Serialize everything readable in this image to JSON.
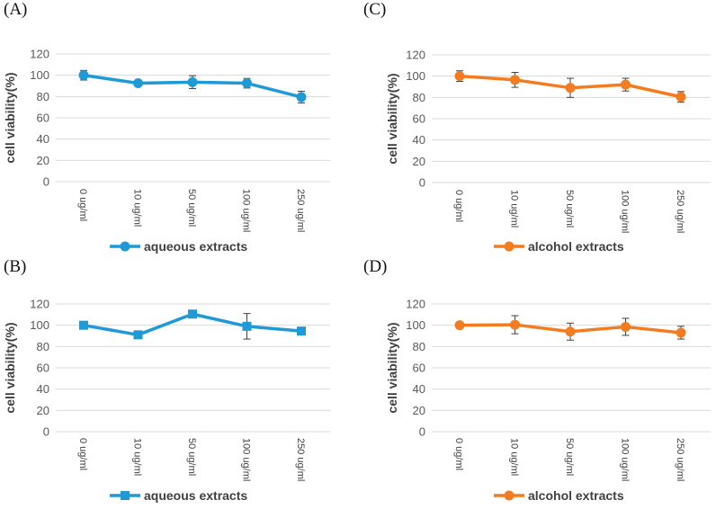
{
  "chart_data": [
    {
      "panel": "(A)",
      "type": "line",
      "marker": "circle",
      "color": "#1f9ad6",
      "categories": [
        "0 ug/ml",
        "10 ug/ml",
        "50 ug/ml",
        "100 ug/ml",
        "250 ug/ml"
      ],
      "series": [
        {
          "name": "aqueous extracts",
          "values": [
            100,
            92.5,
            93.5,
            92.5,
            79.5
          ],
          "errors": [
            4.5,
            2,
            6,
            4.5,
            5.5
          ]
        }
      ],
      "ylabel": "cell viability(%)",
      "ylim": [
        0,
        120
      ],
      "yticks": [
        "0",
        "20",
        "40",
        "60",
        "80",
        "100",
        "120"
      ],
      "grid": true,
      "legend": "bottom"
    },
    {
      "panel": "(C)",
      "type": "line",
      "marker": "circle",
      "color": "#f47c20",
      "categories": [
        "0 ug/ml",
        "10 ug/ml",
        "50 ug/ml",
        "100 ug/ml",
        "250 ug/ml"
      ],
      "series": [
        {
          "name": "alcohol extracts",
          "values": [
            100,
            96.5,
            89,
            92,
            80.5
          ],
          "errors": [
            5,
            7,
            9,
            6,
            5
          ]
        }
      ],
      "ylabel": "cell viability(%)",
      "ylim": [
        0,
        120
      ],
      "yticks": [
        "0",
        "20",
        "40",
        "60",
        "80",
        "100",
        "120"
      ],
      "grid": true,
      "legend": "bottom"
    },
    {
      "panel": "(B)",
      "type": "line",
      "marker": "square",
      "color": "#1f9ad6",
      "categories": [
        "0 ug/ml",
        "10 ug/ml",
        "50 ug/ml",
        "100 ug/ml",
        "250 ug/ml"
      ],
      "series": [
        {
          "name": "aqueous extracts",
          "values": [
            100,
            91,
            110.5,
            99,
            94.5
          ],
          "errors": [
            2,
            2,
            3,
            12,
            3
          ]
        }
      ],
      "ylabel": "cell viability(%)",
      "ylim": [
        0,
        120
      ],
      "yticks": [
        "0",
        "20",
        "40",
        "60",
        "80",
        "100",
        "120"
      ],
      "grid": true,
      "legend": "bottom"
    },
    {
      "panel": "(D)",
      "type": "line",
      "marker": "circle",
      "color": "#f47c20",
      "categories": [
        "0 ug/ml",
        "10 ug/ml",
        "50 ug/ml",
        "100 ug/ml",
        "250 ug/ml"
      ],
      "series": [
        {
          "name": "alcohol extracts",
          "values": [
            100,
            100.5,
            94,
            98.5,
            93
          ],
          "errors": [
            3,
            8.5,
            8,
            8,
            6
          ]
        }
      ],
      "ylabel": "cell viability(%)",
      "ylim": [
        0,
        120
      ],
      "yticks": [
        "0",
        "20",
        "40",
        "60",
        "80",
        "100",
        "120"
      ],
      "grid": true,
      "legend": "bottom"
    }
  ]
}
